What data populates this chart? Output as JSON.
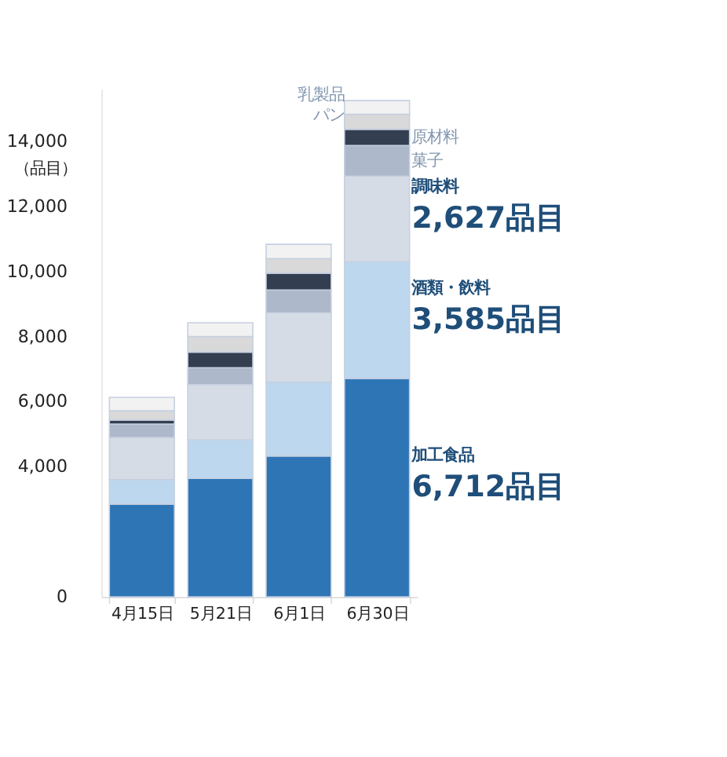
{
  "chart_data": {
    "type": "bar",
    "stacked": true,
    "ylabel": "（品目）",
    "categories": [
      "4月15日",
      "5月21日",
      "6月1日",
      "6月30日"
    ],
    "series": [
      {
        "name": "加工食品",
        "color": "#2e75b6",
        "values": [
          2850,
          3640,
          4330,
          6712
        ]
      },
      {
        "name": "酒類・飲料",
        "color": "#bdd7ee",
        "values": [
          750,
          1180,
          2270,
          3585
        ]
      },
      {
        "name": "調味料",
        "color": "#d6dce5",
        "values": [
          1300,
          1700,
          2130,
          2627
        ]
      },
      {
        "name": "菓子",
        "color": "#adb9ca",
        "values": [
          410,
          520,
          700,
          940
        ]
      },
      {
        "name": "原材料",
        "color": "#333f50",
        "values": [
          120,
          480,
          510,
          500
        ]
      },
      {
        "name": "パン",
        "color": "#d9d9d9",
        "values": [
          290,
          480,
          450,
          460
        ]
      },
      {
        "name": "乳製品",
        "color": "#f2f2f2",
        "values": [
          410,
          420,
          440,
          420
        ]
      }
    ],
    "annotations": [
      "6,712品目",
      "3,585品目",
      "2,627品目"
    ],
    "ylim": [
      0,
      15600
    ],
    "yticks": [
      {
        "value": 0,
        "label": "0"
      },
      {
        "value": 4000,
        "label": "4,000"
      },
      {
        "value": 6000,
        "label": "6,000"
      },
      {
        "value": 8000,
        "label": "8,000"
      },
      {
        "value": 10000,
        "label": "10,000"
      },
      {
        "value": 12000,
        "label": "12,000"
      },
      {
        "value": 14000,
        "label": "14,000"
      }
    ],
    "grid": false,
    "legend": false
  }
}
